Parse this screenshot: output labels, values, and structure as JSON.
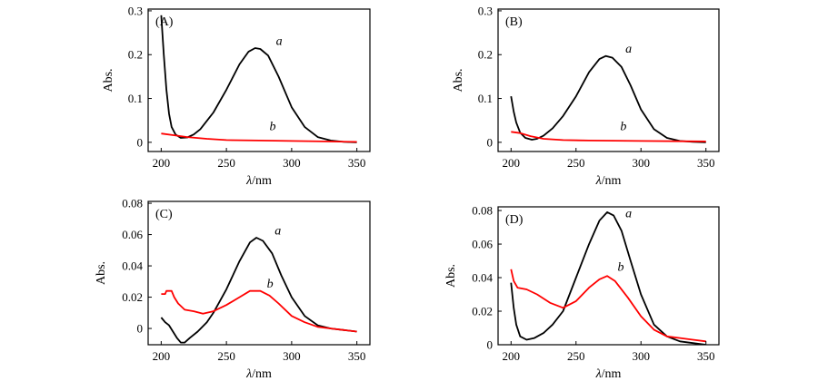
{
  "chart_data": [
    {
      "type": "line",
      "panel_label": "(A)",
      "xlabel_symbol": "λ",
      "xlabel_unit": "/nm",
      "ylabel": "Abs.",
      "xlim": [
        190,
        360
      ],
      "ylim": [
        -0.021,
        0.304
      ],
      "xticks": [
        200,
        250,
        300,
        350
      ],
      "yticks": [
        0,
        0.1,
        0.2,
        0.3
      ],
      "ytick_labels": [
        "0",
        "0.1",
        "0.2",
        "0.3"
      ],
      "series": [
        {
          "name": "a",
          "color": "#000000",
          "label_at": [
            288,
            0.222
          ],
          "points": [
            [
              200,
              0.29
            ],
            [
              202,
              0.2
            ],
            [
              204,
              0.12
            ],
            [
              206,
              0.065
            ],
            [
              208,
              0.035
            ],
            [
              211,
              0.018
            ],
            [
              215,
              0.01
            ],
            [
              220,
              0.011
            ],
            [
              225,
              0.018
            ],
            [
              230,
              0.03
            ],
            [
              240,
              0.068
            ],
            [
              250,
              0.12
            ],
            [
              260,
              0.178
            ],
            [
              267,
              0.207
            ],
            [
              272,
              0.215
            ],
            [
              276,
              0.213
            ],
            [
              282,
              0.198
            ],
            [
              290,
              0.15
            ],
            [
              300,
              0.08
            ],
            [
              310,
              0.035
            ],
            [
              320,
              0.012
            ],
            [
              330,
              0.004
            ],
            [
              340,
              0.001
            ],
            [
              350,
              0.0
            ]
          ]
        },
        {
          "name": "b",
          "color": "#ff0000",
          "label_at": [
            283,
            0.028
          ],
          "points": [
            [
              200,
              0.02
            ],
            [
              210,
              0.016
            ],
            [
              220,
              0.012
            ],
            [
              235,
              0.008
            ],
            [
              250,
              0.005
            ],
            [
              275,
              0.004
            ],
            [
              300,
              0.003
            ],
            [
              325,
              0.002
            ],
            [
              350,
              0.001
            ]
          ]
        }
      ]
    },
    {
      "type": "line",
      "panel_label": "(B)",
      "xlabel_symbol": "λ",
      "xlabel_unit": "/nm",
      "ylabel": "Abs.",
      "xlim": [
        190,
        360
      ],
      "ylim": [
        -0.021,
        0.304
      ],
      "xticks": [
        200,
        250,
        300,
        350
      ],
      "yticks": [
        0,
        0.1,
        0.2,
        0.3
      ],
      "ytick_labels": [
        "0",
        "0.1",
        "0.2",
        "0.3"
      ],
      "series": [
        {
          "name": "a",
          "color": "#000000",
          "label_at": [
            288,
            0.205
          ],
          "points": [
            [
              200,
              0.105
            ],
            [
              202,
              0.07
            ],
            [
              204,
              0.045
            ],
            [
              207,
              0.022
            ],
            [
              211,
              0.01
            ],
            [
              216,
              0.006
            ],
            [
              220,
              0.008
            ],
            [
              225,
              0.015
            ],
            [
              232,
              0.032
            ],
            [
              240,
              0.06
            ],
            [
              250,
              0.105
            ],
            [
              260,
              0.16
            ],
            [
              268,
              0.19
            ],
            [
              273,
              0.197
            ],
            [
              278,
              0.193
            ],
            [
              285,
              0.172
            ],
            [
              292,
              0.13
            ],
            [
              300,
              0.075
            ],
            [
              310,
              0.03
            ],
            [
              320,
              0.01
            ],
            [
              330,
              0.003
            ],
            [
              340,
              0.001
            ],
            [
              350,
              0.0
            ]
          ]
        },
        {
          "name": "b",
          "color": "#ff0000",
          "label_at": [
            284,
            0.028
          ],
          "points": [
            [
              200,
              0.024
            ],
            [
              207,
              0.021
            ],
            [
              215,
              0.014
            ],
            [
              225,
              0.008
            ],
            [
              240,
              0.005
            ],
            [
              260,
              0.004
            ],
            [
              300,
              0.003
            ],
            [
              350,
              0.002
            ]
          ]
        }
      ]
    },
    {
      "type": "line",
      "panel_label": "(C)",
      "xlabel_symbol": "λ",
      "xlabel_unit": "/nm",
      "ylabel": "Abs.",
      "xlim": [
        190,
        360
      ],
      "ylim": [
        -0.0104,
        0.0812
      ],
      "xticks": [
        200,
        250,
        300,
        350
      ],
      "yticks": [
        0,
        0.02,
        0.04,
        0.06,
        0.08
      ],
      "ytick_labels": [
        "0",
        "0.02",
        "0.04",
        "0.06",
        "0.08"
      ],
      "series": [
        {
          "name": "a",
          "color": "#000000",
          "label_at": [
            287,
            0.06
          ],
          "points": [
            [
              200,
              0.007
            ],
            [
              203,
              0.004
            ],
            [
              206,
              0.002
            ],
            [
              209,
              -0.002
            ],
            [
              212,
              -0.006
            ],
            [
              215,
              -0.009
            ],
            [
              218,
              -0.009
            ],
            [
              222,
              -0.006
            ],
            [
              228,
              -0.002
            ],
            [
              235,
              0.004
            ],
            [
              240,
              0.01
            ],
            [
              250,
              0.025
            ],
            [
              260,
              0.043
            ],
            [
              268,
              0.055
            ],
            [
              273,
              0.058
            ],
            [
              278,
              0.056
            ],
            [
              285,
              0.048
            ],
            [
              292,
              0.034
            ],
            [
              300,
              0.02
            ],
            [
              310,
              0.008
            ],
            [
              320,
              0.002
            ],
            [
              330,
              0.0
            ],
            [
              340,
              -0.001
            ],
            [
              350,
              -0.002
            ]
          ]
        },
        {
          "name": "b",
          "color": "#ff0000",
          "label_at": [
            281,
            0.026
          ],
          "points": [
            [
              200,
              0.022
            ],
            [
              203,
              0.022
            ],
            [
              204,
              0.024
            ],
            [
              208,
              0.024
            ],
            [
              210,
              0.02
            ],
            [
              213,
              0.016
            ],
            [
              218,
              0.012
            ],
            [
              225,
              0.011
            ],
            [
              232,
              0.0095
            ],
            [
              240,
              0.011
            ],
            [
              250,
              0.015
            ],
            [
              260,
              0.02
            ],
            [
              268,
              0.024
            ],
            [
              276,
              0.024
            ],
            [
              283,
              0.021
            ],
            [
              290,
              0.016
            ],
            [
              300,
              0.008
            ],
            [
              310,
              0.004
            ],
            [
              320,
              0.001
            ],
            [
              330,
              0.0
            ],
            [
              340,
              -0.001
            ],
            [
              350,
              -0.002
            ]
          ]
        }
      ]
    },
    {
      "type": "line",
      "panel_label": "(D)",
      "xlabel_symbol": "λ",
      "xlabel_unit": "/nm",
      "ylabel": "Abs.",
      "xlim": [
        190,
        360
      ],
      "ylim": [
        0,
        0.0822
      ],
      "xticks": [
        200,
        250,
        300,
        350
      ],
      "yticks": [
        0,
        0.02,
        0.04,
        0.06,
        0.08
      ],
      "ytick_labels": [
        "0",
        "0.02",
        "0.04",
        "0.06",
        "0.08"
      ],
      "series": [
        {
          "name": "a",
          "color": "#000000",
          "label_at": [
            288,
            0.076
          ],
          "points": [
            [
              200,
              0.037
            ],
            [
              202,
              0.022
            ],
            [
              204,
              0.012
            ],
            [
              207,
              0.005
            ],
            [
              212,
              0.003
            ],
            [
              218,
              0.004
            ],
            [
              225,
              0.007
            ],
            [
              232,
              0.012
            ],
            [
              240,
              0.02
            ],
            [
              250,
              0.04
            ],
            [
              260,
              0.06
            ],
            [
              268,
              0.074
            ],
            [
              274,
              0.079
            ],
            [
              279,
              0.077
            ],
            [
              285,
              0.068
            ],
            [
              292,
              0.05
            ],
            [
              300,
              0.03
            ],
            [
              310,
              0.012
            ],
            [
              320,
              0.005
            ],
            [
              330,
              0.002
            ],
            [
              340,
              0.001
            ],
            [
              350,
              0.0
            ]
          ]
        },
        {
          "name": "b",
          "color": "#ff0000",
          "label_at": [
            282,
            0.044
          ],
          "points": [
            [
              200,
              0.045
            ],
            [
              202,
              0.038
            ],
            [
              205,
              0.034
            ],
            [
              212,
              0.033
            ],
            [
              220,
              0.03
            ],
            [
              230,
              0.025
            ],
            [
              240,
              0.022
            ],
            [
              250,
              0.026
            ],
            [
              260,
              0.034
            ],
            [
              268,
              0.039
            ],
            [
              274,
              0.041
            ],
            [
              280,
              0.038
            ],
            [
              290,
              0.028
            ],
            [
              300,
              0.017
            ],
            [
              310,
              0.009
            ],
            [
              320,
              0.005
            ],
            [
              330,
              0.004
            ],
            [
              340,
              0.003
            ],
            [
              350,
              0.002
            ]
          ]
        }
      ]
    }
  ]
}
